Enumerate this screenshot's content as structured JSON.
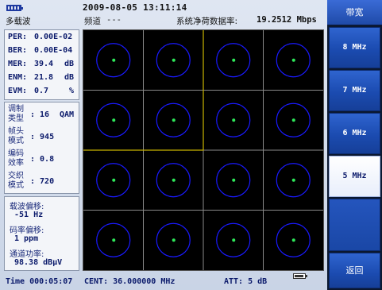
{
  "header": {
    "datetime": "2009-08-05 13:11:14",
    "mode_title": "多载波",
    "channel_label": "频道",
    "channel_value": "---",
    "rate_label": "系统净荷数据率:",
    "rate_value": "19.2512 Mbps"
  },
  "metrics": [
    {
      "name": "PER:",
      "value": "0.00E-02",
      "unit": ""
    },
    {
      "name": "BER:",
      "value": "0.00E-04",
      "unit": ""
    },
    {
      "name": "MER:",
      "value": "39.4",
      "unit": "dB"
    },
    {
      "name": "ENM:",
      "value": "21.8",
      "unit": "dB"
    },
    {
      "name": "EVM:",
      "value": "0.7",
      "unit": "%"
    }
  ],
  "modulation": [
    {
      "label": "调制类型",
      "value": ": 16",
      "extra": "QAM"
    },
    {
      "label": "帧头模式",
      "value": ": 945",
      "extra": ""
    },
    {
      "label": "编码效率",
      "value": ": 0.8",
      "extra": ""
    },
    {
      "label": "交织模式",
      "value": ": 720",
      "extra": ""
    }
  ],
  "offsets": {
    "carrier_label": "载波偏移:",
    "carrier_value": "-51 Hz",
    "symbol_label": "码率偏移:",
    "symbol_value": "1 ppm",
    "power_label": "通道功率:",
    "power_value": "98.38 dBμV"
  },
  "softkeys": {
    "title": "带宽",
    "buttons": [
      {
        "label": "8 MHz",
        "active": false
      },
      {
        "label": "7 MHz",
        "active": false
      },
      {
        "label": "6 MHz",
        "active": false
      },
      {
        "label": "5 MHz",
        "active": true
      }
    ],
    "back_label": "返回"
  },
  "footer": {
    "elapsed": "Time 000:05:07",
    "center_freq": "CENT: 36.000000 MHz",
    "atten": "ATT: 5 dB"
  },
  "constellation": {
    "modulation": "16QAM",
    "grid_line_color": "#8a8a8a",
    "highlight_color": "#c8b400",
    "circle_color": "#1a1aff",
    "point_color": "#2ee85a"
  }
}
